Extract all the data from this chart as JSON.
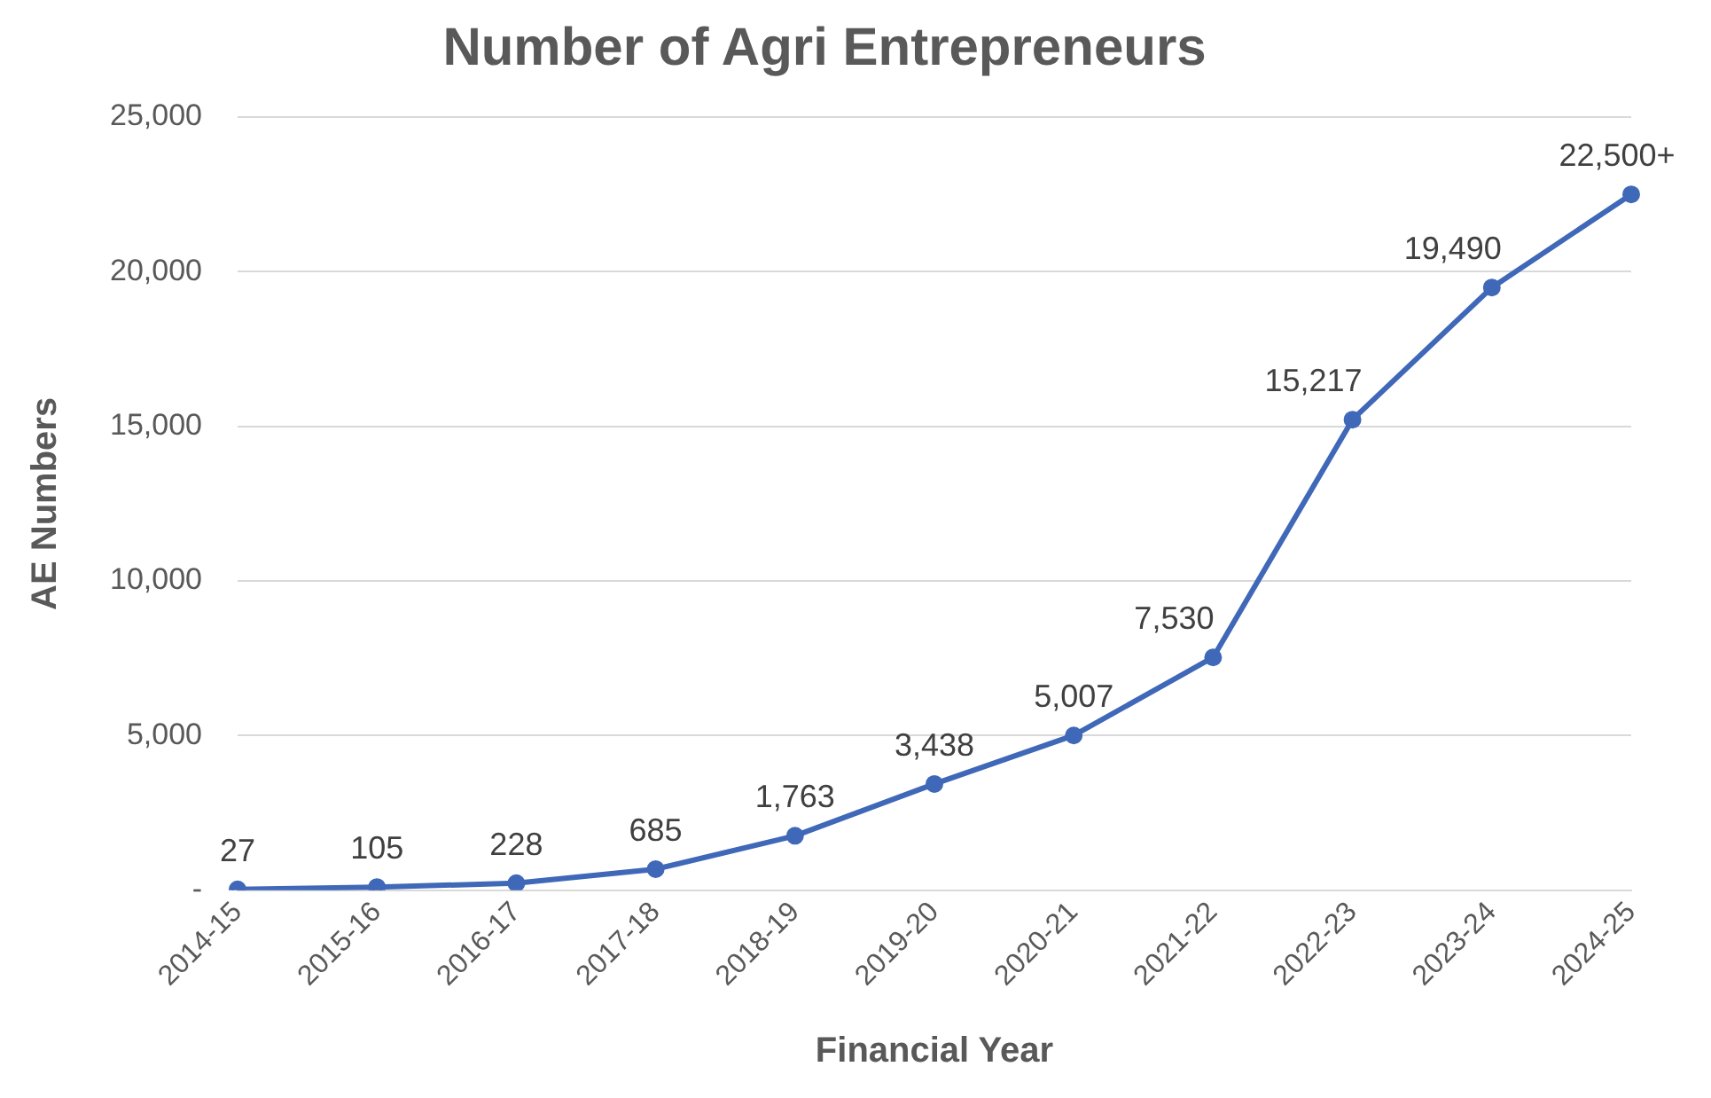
{
  "chart_data": {
    "type": "line",
    "title": "Number of Agri Entrepreneurs",
    "xlabel": "Financial Year",
    "ylabel": "AE Numbers",
    "categories": [
      "2014-15",
      "2015-16",
      "2016-17",
      "2017-18",
      "2018-19",
      "2019-20",
      "2020-21",
      "2021-22",
      "2022-23",
      "2023-24",
      "2024-25"
    ],
    "series": [
      {
        "color": "#4068b8",
        "values": [
          27,
          105,
          228,
          685,
          1763,
          3438,
          5007,
          7530,
          15217,
          19490,
          22500
        ],
        "value_labels": [
          "27",
          "105",
          "228",
          "685",
          "1,763",
          "3,438",
          "5,007",
          "7,530",
          "15,217",
          "19,490",
          "22,500+"
        ]
      }
    ],
    "ylim": [
      0,
      25000
    ],
    "yticks": [
      {
        "value": 0,
        "label": "-"
      },
      {
        "value": 5000,
        "label": "5,000"
      },
      {
        "value": 10000,
        "label": "10,000"
      },
      {
        "value": 15000,
        "label": "15,000"
      },
      {
        "value": 20000,
        "label": "20,000"
      },
      {
        "value": 25000,
        "label": "25,000"
      }
    ],
    "grid": "y",
    "legend": false,
    "marker": "circle",
    "line_style": "solid"
  }
}
